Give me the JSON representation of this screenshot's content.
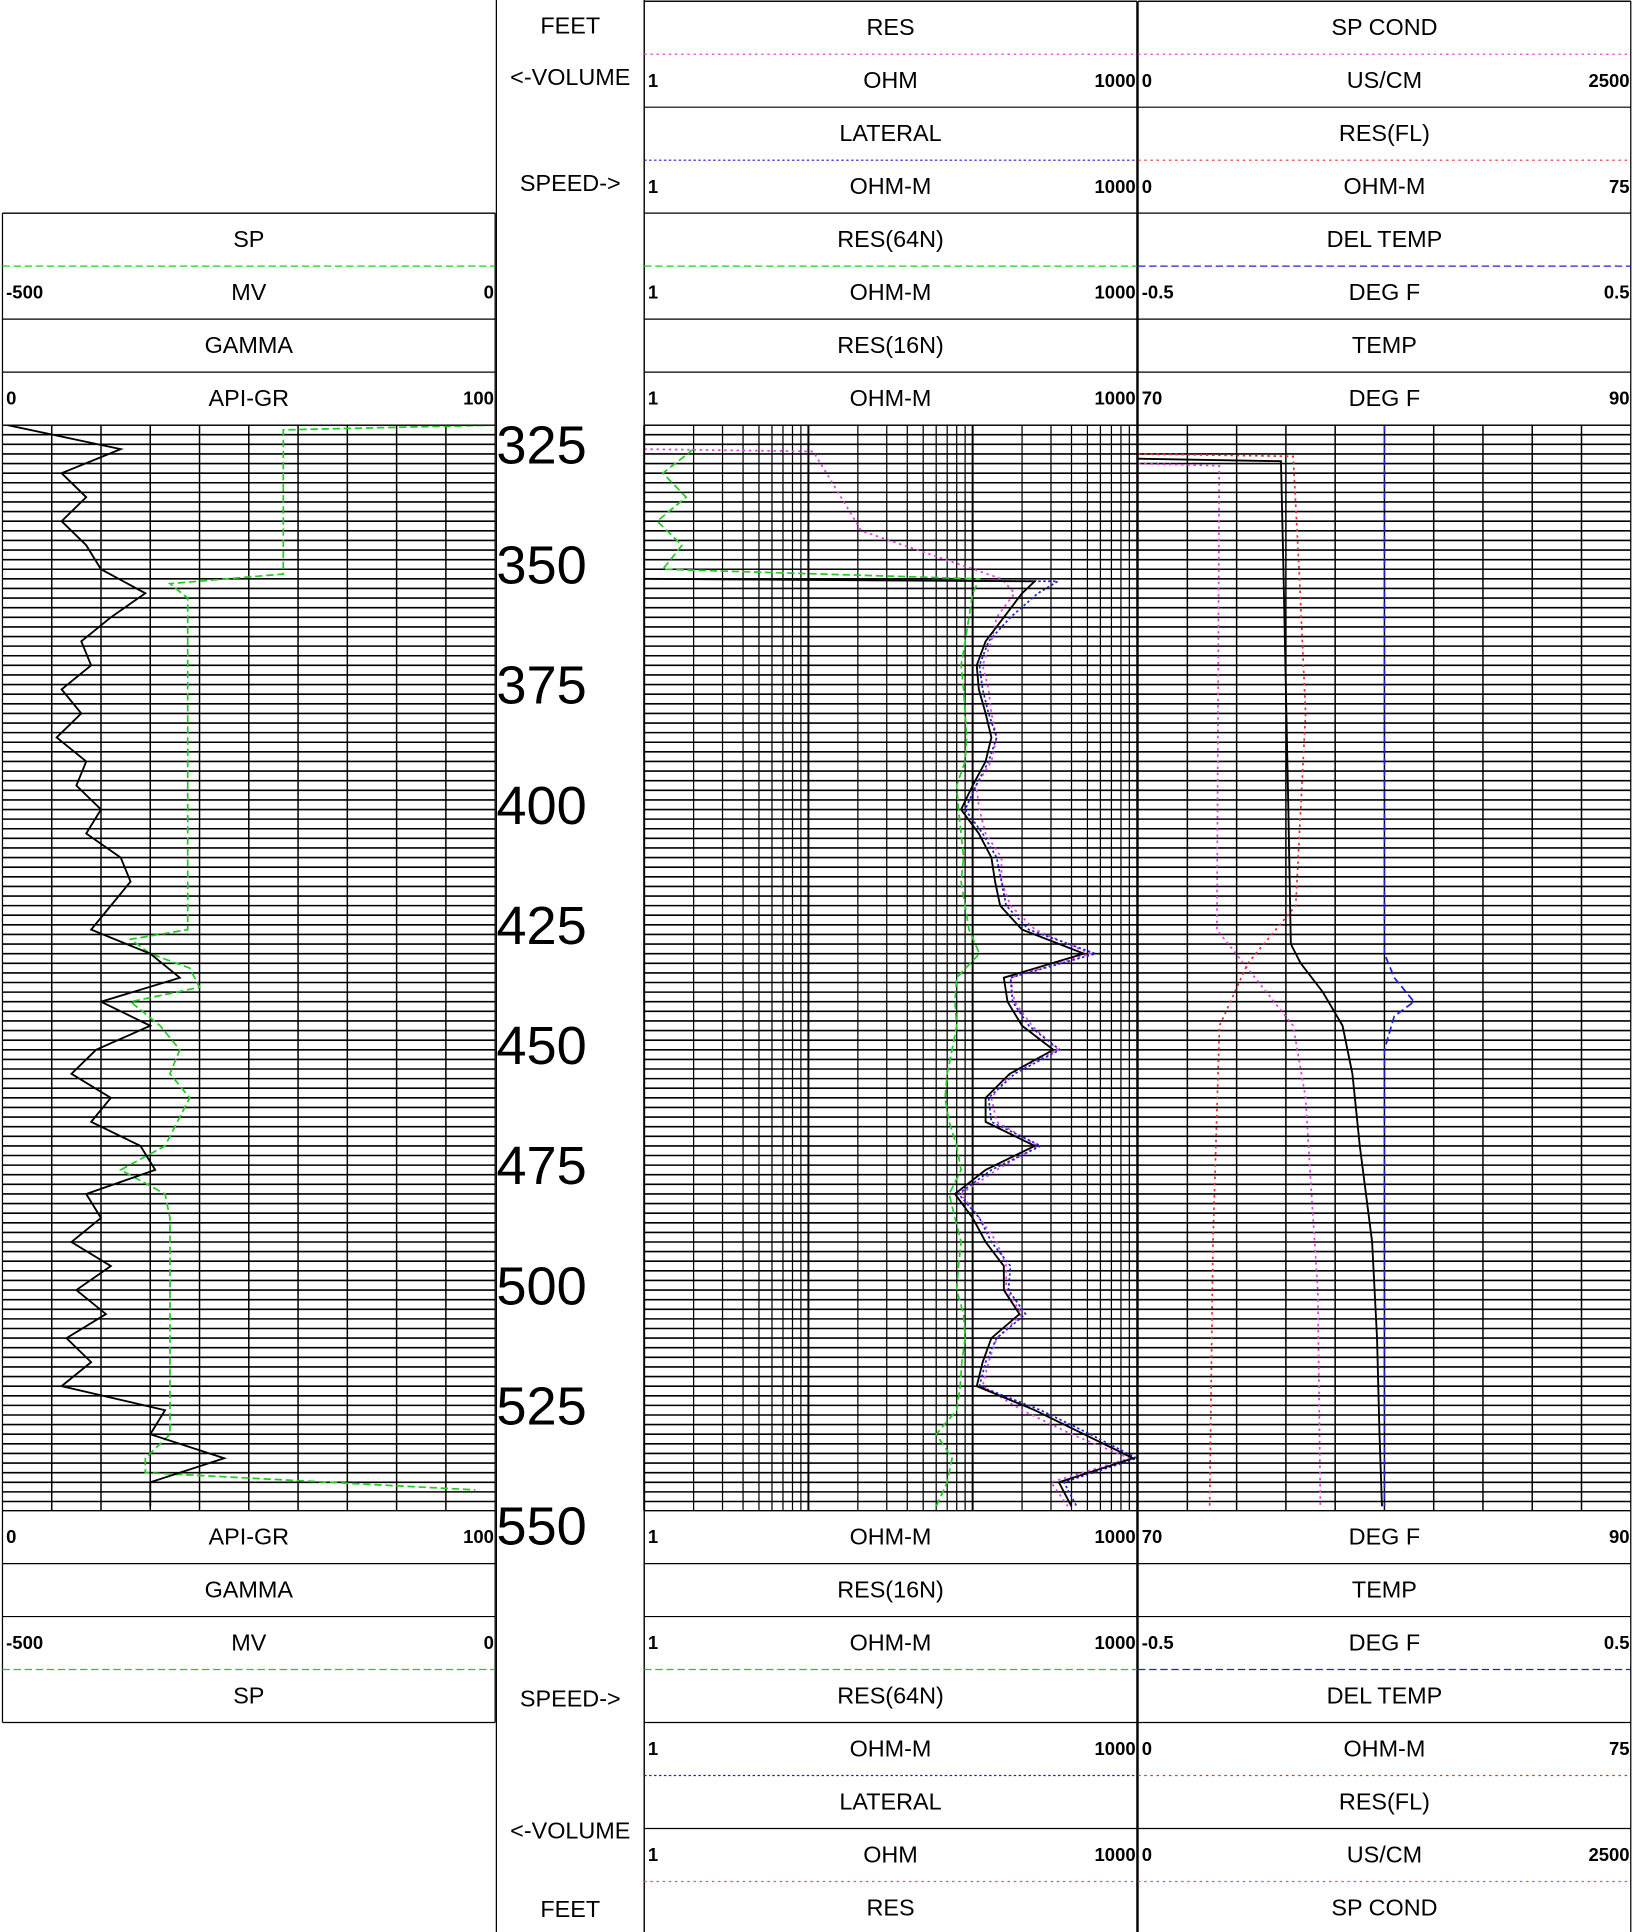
{
  "chart_data": {
    "type": "well_log",
    "depth_header": [
      "FEET",
      "<-VOLUME",
      "SPEED->"
    ],
    "ylim": [
      320,
      550
    ],
    "yticks": [
      325,
      350,
      375,
      400,
      425,
      450,
      475,
      500,
      525,
      550
    ],
    "ygrid_step": 2,
    "tracks": [
      {
        "scale": "linear",
        "grid_divisions": 10,
        "series": [
          {
            "name": "SP",
            "unit": "MV",
            "xlim": [
              -500,
              0
            ],
            "color": "#22cc22",
            "dash": "6,3",
            "depth": [
              320,
              321,
              335,
              351,
              353,
              356,
              425,
              427,
              430,
              433,
              437,
              440,
              445,
              450,
              455,
              460,
              470,
              475,
              480,
              485,
              530,
              535,
              538,
              541.6
            ],
            "values": [
              0,
              -215,
              -215,
              -215,
              -330,
              -312,
              -312,
              -370,
              -350,
              -310,
              -300,
              -370,
              -340,
              -320,
              -330,
              -310,
              -335,
              -380,
              -335,
              -330,
              -330,
              -355,
              -355,
              -20
            ]
          },
          {
            "name": "GAMMA",
            "unit": "API-GR",
            "xlim": [
              0,
              100
            ],
            "color": "#000000",
            "dash": "",
            "depth": [
              320,
              325,
              330,
              335,
              340,
              345,
              350,
              355,
              360,
              365,
              370,
              375,
              380,
              385,
              390,
              395,
              400,
              405,
              410,
              415,
              420,
              425,
              430,
              435,
              440,
              445,
              450,
              455,
              460,
              465,
              470,
              475,
              480,
              485,
              490,
              495,
              500,
              505,
              510,
              515,
              520,
              525,
              530,
              535,
              540,
              545
            ],
            "values": [
              1,
              24,
              12,
              17,
              12,
              17,
              20,
              29,
              22,
              16,
              18,
              12,
              16,
              11,
              17,
              15,
              20,
              17,
              24,
              26,
              22,
              18,
              30,
              36,
              20,
              30,
              19,
              14,
              22,
              18,
              28,
              31,
              17,
              20,
              14,
              22,
              15,
              21,
              13,
              18,
              12,
              33,
              30,
              45,
              30,
              30
            ]
          }
        ]
      },
      {
        "scale": "log",
        "series": [
          {
            "name": "RES",
            "unit": "OHM",
            "xlim": [
              1,
              1000
            ],
            "color": "#e040e0",
            "dash": "2,3",
            "depth": [
              325,
              325.5,
              342,
              352,
              355,
              360,
              365,
              370,
              375,
              380,
              385,
              390,
              395,
              400,
              405,
              410,
              415,
              420,
              425,
              430,
              435,
              440,
              445,
              450,
              455,
              460,
              465,
              470,
              475,
              480,
              485,
              490,
              495,
              500,
              505,
              510,
              515,
              520,
              525,
              530,
              535,
              540,
              545
            ],
            "values": [
              1,
              10.7,
              21,
              150,
              180,
              140,
              130,
              115,
              125,
              130,
              140,
              130,
              105,
              110,
              120,
              150,
              150,
              170,
              240,
              520,
              170,
              180,
              230,
              330,
              170,
              130,
              140,
              250,
              140,
              85,
              110,
              140,
              160,
              160,
              200,
              140,
              125,
              115,
              200,
              400,
              900,
              300,
              380
            ]
          },
          {
            "name": "LATERAL",
            "unit": "OHM-M",
            "xlim": [
              1,
              1000
            ],
            "color": "#2020d0",
            "dash": "2,2",
            "depth": [
              352,
              352.5,
              355,
              360,
              365,
              370,
              375,
              380,
              385,
              390,
              395,
              400,
              405,
              410,
              415,
              420,
              425,
              430,
              435,
              440,
              445,
              450,
              455,
              460,
              465,
              470,
              475,
              480,
              485,
              490,
              495,
              500,
              505,
              510,
              515,
              520,
              525,
              530,
              535,
              540,
              545
            ],
            "values": [
              1,
              330,
              250,
              170,
              125,
              110,
              115,
              125,
              140,
              125,
              105,
              90,
              115,
              140,
              150,
              160,
              220,
              560,
              170,
              175,
              220,
              340,
              180,
              125,
              130,
              260,
              130,
              82,
              110,
              130,
              170,
              165,
              210,
              140,
              120,
              110,
              260,
              520,
              1000,
              360,
              430
            ]
          },
          {
            "name": "RES(64N)",
            "unit": "OHM-M",
            "xlim": [
              1,
              1000
            ],
            "color": "#22cc22",
            "dash": "6,3",
            "depth": [
              325,
              330,
              335,
              340,
              345,
              350,
              352,
              355,
              360,
              365,
              370,
              375,
              380,
              385,
              390,
              395,
              400,
              405,
              410,
              415,
              420,
              425,
              430,
              435,
              440,
              445,
              450,
              455,
              460,
              465,
              470,
              475,
              480,
              485,
              490,
              495,
              500,
              505,
              510,
              515,
              520,
              525,
              530,
              535,
              540,
              545
            ],
            "values": [
              2,
              1.3,
              1.8,
              1.2,
              1.7,
              1.3,
              110,
              100,
              95,
              90,
              85,
              88,
              90,
              92,
              90,
              80,
              82,
              85,
              88,
              85,
              90,
              95,
              110,
              80,
              78,
              80,
              75,
              70,
              68,
              72,
              80,
              85,
              72,
              78,
              85,
              82,
              80,
              88,
              90,
              86,
              84,
              80,
              60,
              75,
              70,
              60
            ]
          },
          {
            "name": "RES(16N)",
            "unit": "OHM-M",
            "xlim": [
              1,
              1000
            ],
            "color": "#000000",
            "dash": "",
            "depth": [
              352,
              352.5,
              355,
              360,
              365,
              370,
              375,
              380,
              385,
              390,
              395,
              400,
              405,
              410,
              415,
              420,
              425,
              430,
              435,
              440,
              445,
              450,
              455,
              460,
              465,
              470,
              475,
              480,
              485,
              490,
              495,
              500,
              505,
              510,
              515,
              520,
              525,
              530,
              535,
              540,
              545
            ],
            "values": [
              1,
              239,
              200,
              155,
              120,
              106,
              109,
              120,
              130,
              120,
              100,
              85,
              109,
              130,
              137,
              147,
              200,
              476,
              155,
              163,
              200,
              310,
              168,
              120,
              120,
              239,
              120,
              78,
              100,
              120,
              155,
              155,
              193,
              130,
              115,
              106,
              239,
              476,
              950,
              335,
              400
            ]
          }
        ]
      },
      {
        "scale": "linear",
        "grid_divisions": 10,
        "series": [
          {
            "name": "SP COND",
            "unit": "US/CM",
            "xlim": [
              0,
              2500
            ],
            "color": "#e040e0",
            "dash": "2,3",
            "depth": [
              328,
              328.5,
              425,
              445,
              460,
              480,
              500,
              545
            ],
            "values": [
              0,
              412,
              400,
              787,
              850,
              880,
              912,
              925
            ]
          },
          {
            "name": "RES(FL)",
            "unit": "OHM-M",
            "xlim": [
              0,
              75
            ],
            "color": "#e03030",
            "dash": "2,3",
            "depth": [
              326,
              326.5,
              350,
              380,
              420,
              432,
              445,
              490,
              545
            ],
            "values": [
              0,
              23.6,
              24.5,
              25.5,
              24,
              16.7,
              12.4,
              11.4,
              10.9
            ]
          },
          {
            "name": "DEL TEMP",
            "unit": "DEG F",
            "xlim": [
              -0.5,
              0.5
            ],
            "color": "#2020d0",
            "dash": "6,3",
            "depth": [
              320,
              430,
              435,
              440,
              443,
              450,
              545
            ],
            "values": [
              0,
              0,
              0.02,
              0.06,
              0.02,
              0,
              0
            ]
          },
          {
            "name": "TEMP",
            "unit": "DEG F",
            "xlim": [
              70,
              90
            ],
            "color": "#000000",
            "dash": "",
            "depth": [
              327,
              327.5,
              350,
              400,
              428,
              432,
              438,
              445,
              455,
              470,
              490,
              510,
              530,
              545
            ],
            "values": [
              70,
              75.8,
              75.9,
              76.1,
              76.2,
              76.6,
              77.5,
              78.3,
              78.7,
              79.0,
              79.5,
              79.7,
              79.8,
              79.9
            ]
          }
        ]
      }
    ]
  }
}
